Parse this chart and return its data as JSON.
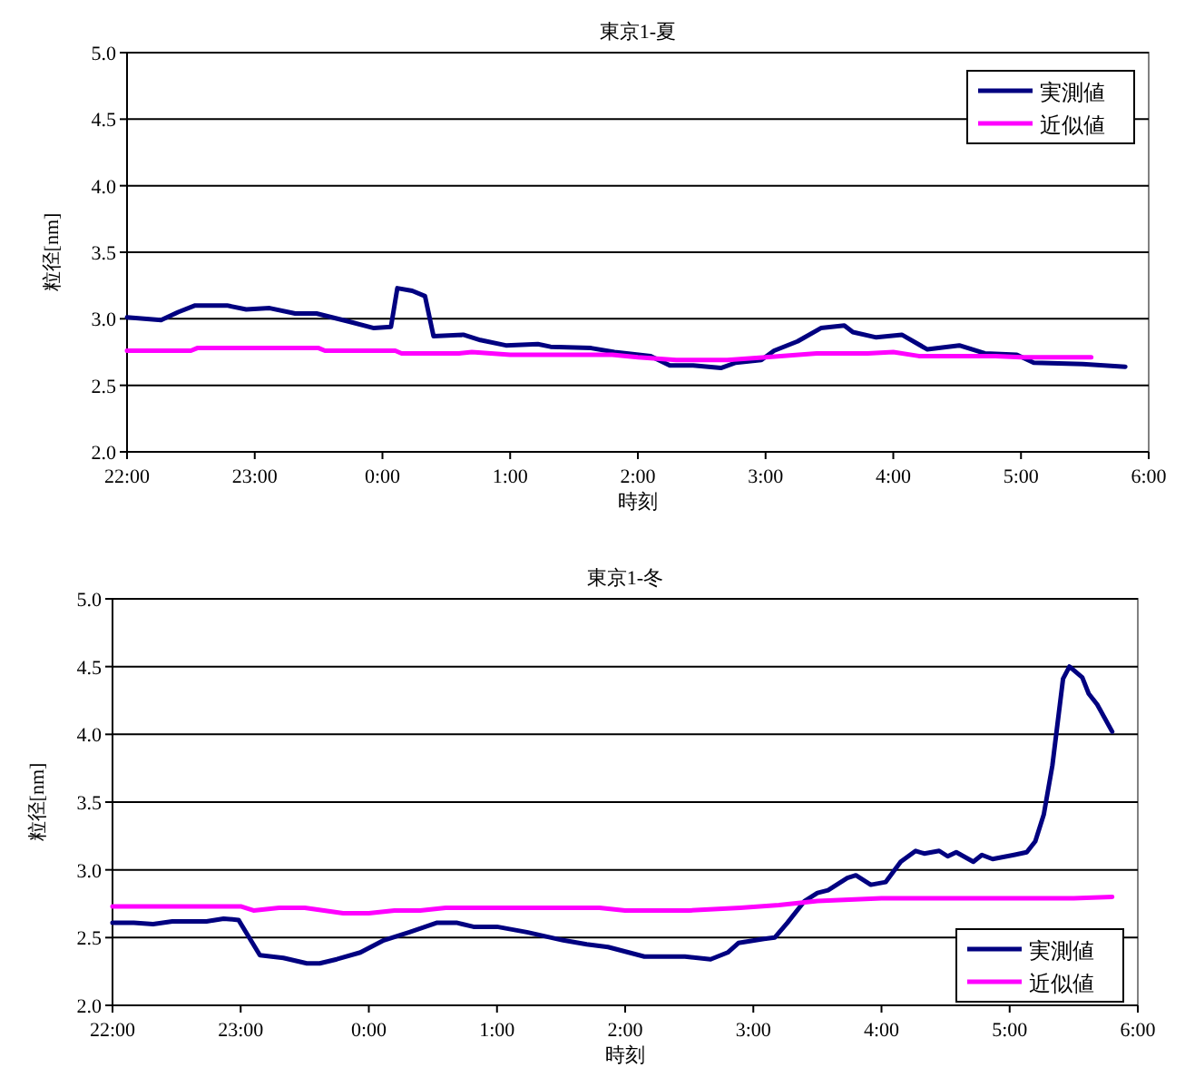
{
  "chart_data": [
    {
      "type": "line",
      "title": "東京1-夏",
      "xlabel": "時刻",
      "ylabel": "粒径[nm]",
      "xlim": [
        "2000-01-01T22:00",
        "2000-01-02T06:00"
      ],
      "ylim": [
        2.0,
        5.0
      ],
      "xticks": [
        {
          "value": "2000-01-01T22:00",
          "label": "22:00"
        },
        {
          "value": "2000-01-01T23:00",
          "label": "23:00"
        },
        {
          "value": "2000-01-02T00:00",
          "label": "0:00"
        },
        {
          "value": "2000-01-02T01:00",
          "label": "1:00"
        },
        {
          "value": "2000-01-02T02:00",
          "label": "2:00"
        },
        {
          "value": "2000-01-02T03:00",
          "label": "3:00"
        },
        {
          "value": "2000-01-02T04:00",
          "label": "4:00"
        },
        {
          "value": "2000-01-02T05:00",
          "label": "5:00"
        },
        {
          "value": "2000-01-02T06:00",
          "label": "6:00"
        }
      ],
      "yticks": [
        {
          "value": 2.0,
          "label": "2.0"
        },
        {
          "value": 2.5,
          "label": "2.5"
        },
        {
          "value": 3.0,
          "label": "3.0"
        },
        {
          "value": 3.5,
          "label": "3.5"
        },
        {
          "value": 4.0,
          "label": "4.0"
        },
        {
          "value": 4.5,
          "label": "4.5"
        },
        {
          "value": 5.0,
          "label": "5.0"
        }
      ],
      "grid": "y",
      "legend": "top right",
      "line_style": "solid",
      "marker": "none",
      "series": [
        {
          "name": "実測値",
          "color": "#000080",
          "x": [
            "2000-01-01T22:00",
            "2000-01-01T22:16",
            "2000-01-01T22:24",
            "2000-01-01T22:32",
            "2000-01-01T22:47",
            "2000-01-01T22:56",
            "2000-01-01T23:07",
            "2000-01-01T23:19",
            "2000-01-01T23:29",
            "2000-01-01T23:44",
            "2000-01-01T23:56",
            "2000-01-02T00:04",
            "2000-01-02T00:07",
            "2000-01-02T00:14",
            "2000-01-02T00:20",
            "2000-01-02T00:24",
            "2000-01-02T00:38",
            "2000-01-02T00:46",
            "2000-01-02T00:58",
            "2000-01-02T01:13",
            "2000-01-02T01:19",
            "2000-01-02T01:38",
            "2000-01-02T01:49",
            "2000-01-02T02:06",
            "2000-01-02T02:15",
            "2000-01-02T02:26",
            "2000-01-02T02:39",
            "2000-01-02T02:46",
            "2000-01-02T02:58",
            "2000-01-02T03:04",
            "2000-01-02T03:15",
            "2000-01-02T03:26",
            "2000-01-02T03:37",
            "2000-01-02T03:41",
            "2000-01-02T03:52",
            "2000-01-02T04:04",
            "2000-01-02T04:16",
            "2000-01-02T04:31",
            "2000-01-02T04:43",
            "2000-01-02T04:58",
            "2000-01-02T05:06",
            "2000-01-02T05:29",
            "2000-01-02T05:49"
          ],
          "values": [
            3.01,
            2.99,
            3.05,
            3.1,
            3.1,
            3.07,
            3.08,
            3.04,
            3.04,
            2.98,
            2.93,
            2.94,
            3.23,
            3.21,
            3.17,
            2.87,
            2.88,
            2.84,
            2.8,
            2.81,
            2.79,
            2.78,
            2.75,
            2.72,
            2.65,
            2.65,
            2.63,
            2.67,
            2.69,
            2.76,
            2.83,
            2.93,
            2.95,
            2.9,
            2.86,
            2.88,
            2.77,
            2.8,
            2.74,
            2.73,
            2.67,
            2.66,
            2.64
          ]
        },
        {
          "name": "近似値",
          "color": "#ff00ff",
          "x": [
            "2000-01-01T22:00",
            "2000-01-01T22:30",
            "2000-01-01T22:33",
            "2000-01-01T23:30",
            "2000-01-01T23:33",
            "2000-01-02T00:06",
            "2000-01-02T00:09",
            "2000-01-02T00:36",
            "2000-01-02T00:42",
            "2000-01-02T01:00",
            "2000-01-02T01:48",
            "2000-01-02T02:00",
            "2000-01-02T02:18",
            "2000-01-02T02:42",
            "2000-01-02T03:00",
            "2000-01-02T03:24",
            "2000-01-02T03:48",
            "2000-01-02T04:00",
            "2000-01-02T04:12",
            "2000-01-02T04:48",
            "2000-01-02T05:00",
            "2000-01-02T05:33"
          ],
          "values": [
            2.76,
            2.76,
            2.78,
            2.78,
            2.76,
            2.76,
            2.74,
            2.74,
            2.75,
            2.73,
            2.73,
            2.71,
            2.69,
            2.69,
            2.71,
            2.74,
            2.74,
            2.75,
            2.72,
            2.72,
            2.71,
            2.71
          ]
        }
      ]
    },
    {
      "type": "line",
      "title": "東京1-冬",
      "xlabel": "時刻",
      "ylabel": "粒径[nm]",
      "xlim": [
        "2000-01-01T22:00",
        "2000-01-02T06:00"
      ],
      "ylim": [
        2.0,
        5.0
      ],
      "xticks": [
        {
          "value": "2000-01-01T22:00",
          "label": "22:00"
        },
        {
          "value": "2000-01-01T23:00",
          "label": "23:00"
        },
        {
          "value": "2000-01-02T00:00",
          "label": "0:00"
        },
        {
          "value": "2000-01-02T01:00",
          "label": "1:00"
        },
        {
          "value": "2000-01-02T02:00",
          "label": "2:00"
        },
        {
          "value": "2000-01-02T03:00",
          "label": "3:00"
        },
        {
          "value": "2000-01-02T04:00",
          "label": "4:00"
        },
        {
          "value": "2000-01-02T05:00",
          "label": "5:00"
        },
        {
          "value": "2000-01-02T06:00",
          "label": "6:00"
        }
      ],
      "yticks": [
        {
          "value": 2.0,
          "label": "2.0"
        },
        {
          "value": 2.5,
          "label": "2.5"
        },
        {
          "value": 3.0,
          "label": "3.0"
        },
        {
          "value": 3.5,
          "label": "3.5"
        },
        {
          "value": 4.0,
          "label": "4.0"
        },
        {
          "value": 4.5,
          "label": "4.5"
        },
        {
          "value": 5.0,
          "label": "5.0"
        }
      ],
      "grid": "y",
      "legend": "bottom right",
      "line_style": "solid",
      "marker": "none",
      "series": [
        {
          "name": "実測値",
          "color": "#000080",
          "x": [
            "2000-01-01T22:00",
            "2000-01-01T22:10",
            "2000-01-01T22:19",
            "2000-01-01T22:28",
            "2000-01-01T22:44",
            "2000-01-01T22:52",
            "2000-01-01T22:59",
            "2000-01-01T23:09",
            "2000-01-01T23:20",
            "2000-01-01T23:31",
            "2000-01-01T23:37",
            "2000-01-01T23:45",
            "2000-01-01T23:56",
            "2000-01-02T00:07",
            "2000-01-02T00:19",
            "2000-01-02T00:32",
            "2000-01-02T00:41",
            "2000-01-02T00:49",
            "2000-01-02T01:00",
            "2000-01-02T01:14",
            "2000-01-02T01:31",
            "2000-01-02T01:42",
            "2000-01-02T01:52",
            "2000-01-02T02:09",
            "2000-01-02T02:28",
            "2000-01-02T02:40",
            "2000-01-02T02:48",
            "2000-01-02T02:53",
            "2000-01-02T03:05",
            "2000-01-02T03:10",
            "2000-01-02T03:16",
            "2000-01-02T03:24",
            "2000-01-02T03:30",
            "2000-01-02T03:35",
            "2000-01-02T03:44",
            "2000-01-02T03:48",
            "2000-01-02T03:55",
            "2000-01-02T04:02",
            "2000-01-02T04:09",
            "2000-01-02T04:16",
            "2000-01-02T04:20",
            "2000-01-02T04:27",
            "2000-01-02T04:31",
            "2000-01-02T04:35",
            "2000-01-02T04:43",
            "2000-01-02T04:47",
            "2000-01-02T04:52",
            "2000-01-02T05:02",
            "2000-01-02T05:08",
            "2000-01-02T05:12",
            "2000-01-02T05:16",
            "2000-01-02T05:20",
            "2000-01-02T05:25",
            "2000-01-02T05:28",
            "2000-01-02T05:34",
            "2000-01-02T05:37",
            "2000-01-02T05:41",
            "2000-01-02T05:48"
          ],
          "values": [
            2.61,
            2.61,
            2.6,
            2.62,
            2.62,
            2.64,
            2.63,
            2.37,
            2.35,
            2.31,
            2.31,
            2.34,
            2.39,
            2.48,
            2.54,
            2.61,
            2.61,
            2.58,
            2.58,
            2.54,
            2.48,
            2.45,
            2.43,
            2.36,
            2.36,
            2.34,
            2.39,
            2.46,
            2.49,
            2.5,
            2.61,
            2.77,
            2.83,
            2.85,
            2.94,
            2.96,
            2.89,
            2.91,
            3.06,
            3.14,
            3.12,
            3.14,
            3.1,
            3.13,
            3.06,
            3.11,
            3.08,
            3.11,
            3.13,
            3.21,
            3.41,
            3.77,
            4.41,
            4.5,
            4.42,
            4.3,
            4.22,
            4.02
          ]
        },
        {
          "name": "近似値",
          "color": "#ff00ff",
          "x": [
            "2000-01-01T22:00",
            "2000-01-01T23:00",
            "2000-01-01T23:06",
            "2000-01-01T23:18",
            "2000-01-01T23:30",
            "2000-01-01T23:48",
            "2000-01-02T00:00",
            "2000-01-02T00:12",
            "2000-01-02T00:24",
            "2000-01-02T00:36",
            "2000-01-02T01:48",
            "2000-01-02T02:00",
            "2000-01-02T02:30",
            "2000-01-02T02:54",
            "2000-01-02T03:12",
            "2000-01-02T03:30",
            "2000-01-02T04:00",
            "2000-01-02T05:30",
            "2000-01-02T05:48"
          ],
          "values": [
            2.73,
            2.73,
            2.7,
            2.72,
            2.72,
            2.68,
            2.68,
            2.7,
            2.7,
            2.72,
            2.72,
            2.7,
            2.7,
            2.72,
            2.74,
            2.77,
            2.79,
            2.79,
            2.8
          ]
        }
      ]
    }
  ]
}
